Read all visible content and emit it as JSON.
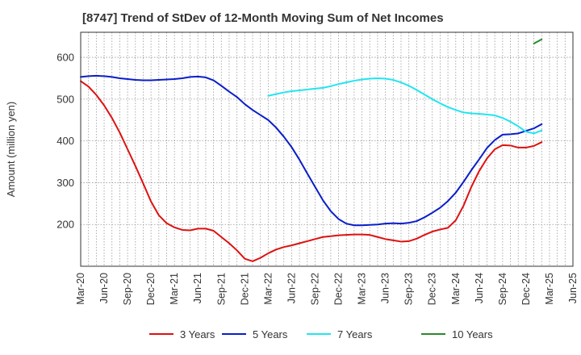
{
  "chart_data": {
    "type": "line",
    "title": "[8747]  Trend of StDev of 12-Month Moving Sum of Net Incomes",
    "xlabel": "",
    "ylabel": "Amount (million yen)",
    "ylim": [
      100,
      660
    ],
    "yticks": [
      200,
      300,
      400,
      500,
      600
    ],
    "x_tick_labels": [
      "Mar-20",
      "Jun-20",
      "Sep-20",
      "Dec-20",
      "Mar-21",
      "Jun-21",
      "Sep-21",
      "Dec-21",
      "Mar-22",
      "Jun-22",
      "Sep-22",
      "Dec-22",
      "Mar-23",
      "Jun-23",
      "Sep-23",
      "Dec-23",
      "Mar-24",
      "Jun-24",
      "Sep-24",
      "Dec-24",
      "Mar-25",
      "Jun-25"
    ],
    "x_months": [
      "2020-03",
      "2020-04",
      "2020-05",
      "2020-06",
      "2020-07",
      "2020-08",
      "2020-09",
      "2020-10",
      "2020-11",
      "2020-12",
      "2021-01",
      "2021-02",
      "2021-03",
      "2021-04",
      "2021-05",
      "2021-06",
      "2021-07",
      "2021-08",
      "2021-09",
      "2021-10",
      "2021-11",
      "2021-12",
      "2022-01",
      "2022-02",
      "2022-03",
      "2022-04",
      "2022-05",
      "2022-06",
      "2022-07",
      "2022-08",
      "2022-09",
      "2022-10",
      "2022-11",
      "2022-12",
      "2023-01",
      "2023-02",
      "2023-03",
      "2023-04",
      "2023-05",
      "2023-06",
      "2023-07",
      "2023-08",
      "2023-09",
      "2023-10",
      "2023-11",
      "2023-12",
      "2024-01",
      "2024-02",
      "2024-03",
      "2024-04",
      "2024-05",
      "2024-06",
      "2024-07",
      "2024-08",
      "2024-09",
      "2024-10",
      "2024-11",
      "2024-12",
      "2025-01",
      "2025-02",
      "2025-03",
      "2025-04",
      "2025-05",
      "2025-06"
    ],
    "grid": true,
    "legend_position": "bottom",
    "series": [
      {
        "name": "3 Years",
        "color": "#dd1111",
        "values": [
          543,
          530,
          510,
          485,
          455,
          420,
          380,
          340,
          298,
          255,
          222,
          203,
          193,
          187,
          186,
          190,
          190,
          185,
          170,
          155,
          138,
          118,
          112,
          120,
          131,
          140,
          146,
          150,
          155,
          160,
          165,
          170,
          172,
          174,
          175,
          176,
          176,
          175,
          170,
          165,
          162,
          159,
          160,
          166,
          175,
          183,
          188,
          192,
          210,
          245,
          290,
          328,
          358,
          380,
          390,
          389,
          384,
          384,
          388,
          397,
          null,
          null,
          null,
          null
        ]
      },
      {
        "name": "5 Years",
        "color": "#0a1ec8",
        "values": [
          553,
          555,
          556,
          555,
          553,
          550,
          548,
          546,
          545,
          545,
          546,
          547,
          548,
          550,
          553,
          554,
          552,
          545,
          532,
          518,
          505,
          488,
          474,
          462,
          450,
          432,
          410,
          385,
          355,
          322,
          290,
          258,
          232,
          213,
          202,
          198,
          198,
          199,
          200,
          202,
          203,
          202,
          204,
          208,
          217,
          228,
          240,
          256,
          276,
          302,
          330,
          356,
          383,
          402,
          415,
          416,
          418,
          424,
          430,
          440,
          null,
          null,
          null,
          null
        ]
      },
      {
        "name": "7 Years",
        "color": "#22e5f0",
        "values": [
          null,
          null,
          null,
          null,
          null,
          null,
          null,
          null,
          null,
          null,
          null,
          null,
          null,
          null,
          null,
          null,
          null,
          null,
          null,
          null,
          null,
          null,
          null,
          null,
          508,
          512,
          516,
          519,
          521,
          523,
          525,
          527,
          531,
          536,
          540,
          544,
          547,
          549,
          550,
          549,
          546,
          540,
          532,
          522,
          511,
          500,
          490,
          481,
          474,
          468,
          466,
          465,
          463,
          461,
          455,
          446,
          435,
          422,
          418,
          425,
          null,
          null,
          null,
          null
        ]
      },
      {
        "name": "10 Years",
        "color": "#2a8a2a",
        "values": [
          null,
          null,
          null,
          null,
          null,
          null,
          null,
          null,
          null,
          null,
          null,
          null,
          null,
          null,
          null,
          null,
          null,
          null,
          null,
          null,
          null,
          null,
          null,
          null,
          null,
          null,
          null,
          null,
          null,
          null,
          null,
          null,
          null,
          null,
          null,
          null,
          null,
          null,
          null,
          null,
          null,
          null,
          null,
          null,
          null,
          null,
          null,
          null,
          null,
          null,
          null,
          null,
          null,
          null,
          null,
          null,
          null,
          null,
          633,
          643,
          null,
          null,
          null,
          null
        ]
      }
    ]
  }
}
